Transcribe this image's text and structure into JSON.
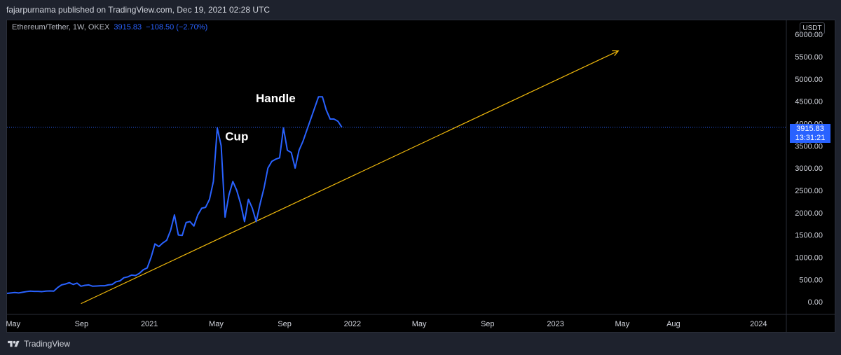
{
  "header": {
    "published_text": "fajarpurnama published on TradingView.com, Dec 19, 2021 02:28 UTC"
  },
  "legend": {
    "symbol_text": "Ethereum/Tether, 1W, OKEX",
    "last_price": "3915.83",
    "change": "−108.50 (−2.70%)"
  },
  "currency_label": "USDT",
  "price_badge": {
    "price": "3915.83",
    "countdown": "13:31:21"
  },
  "footer": {
    "logo_text": "TradingView"
  },
  "colors": {
    "background": "#000000",
    "frame": "#1e222d",
    "price_line": "#2962ff",
    "trendline": "#f0b90b",
    "annotation_text": "#ffffff"
  },
  "chart_data": {
    "type": "line",
    "title": "",
    "xlabel": "",
    "ylabel": "",
    "ylim": [
      -250,
      6300
    ],
    "xlim": [
      "2020-04-20",
      "2024-02-20"
    ],
    "y_ticks": [
      0,
      500,
      1000,
      1500,
      2000,
      2500,
      3000,
      3500,
      4000,
      4500,
      5000,
      5500,
      6000
    ],
    "y_tick_labels": [
      "0.00",
      "500.00",
      "1000.00",
      "1500.00",
      "2000.00",
      "2500.00",
      "3000.00",
      "3500.00",
      "4000.00",
      "4500.00",
      "5000.00",
      "5500.00",
      "6000.00"
    ],
    "x_ticks": [
      {
        "label": "May",
        "date": "2020-05-01"
      },
      {
        "label": "Sep",
        "date": "2020-09-01"
      },
      {
        "label": "2021",
        "date": "2021-01-01"
      },
      {
        "label": "May",
        "date": "2021-05-01"
      },
      {
        "label": "Sep",
        "date": "2021-09-01"
      },
      {
        "label": "2022",
        "date": "2022-01-01"
      },
      {
        "label": "May",
        "date": "2022-05-01"
      },
      {
        "label": "Sep",
        "date": "2022-09-01"
      },
      {
        "label": "2023",
        "date": "2023-01-01"
      },
      {
        "label": "May",
        "date": "2023-05-01"
      },
      {
        "label": "Aug",
        "date": "2023-08-01"
      },
      {
        "label": "2024",
        "date": "2024-01-01"
      }
    ],
    "grid": false,
    "last_price_line": 3915.83,
    "series": [
      {
        "name": "Ethereum/Tether, 1W, OKEX",
        "x": [
          "2020-04-20",
          "2020-04-27",
          "2020-05-04",
          "2020-05-11",
          "2020-05-18",
          "2020-05-25",
          "2020-06-01",
          "2020-06-08",
          "2020-06-15",
          "2020-06-22",
          "2020-06-29",
          "2020-07-06",
          "2020-07-13",
          "2020-07-20",
          "2020-07-27",
          "2020-08-03",
          "2020-08-10",
          "2020-08-17",
          "2020-08-24",
          "2020-08-31",
          "2020-09-07",
          "2020-09-14",
          "2020-09-21",
          "2020-09-28",
          "2020-10-05",
          "2020-10-12",
          "2020-10-19",
          "2020-10-26",
          "2020-11-02",
          "2020-11-09",
          "2020-11-16",
          "2020-11-23",
          "2020-11-30",
          "2020-12-07",
          "2020-12-14",
          "2020-12-21",
          "2020-12-28",
          "2021-01-04",
          "2021-01-11",
          "2021-01-18",
          "2021-01-25",
          "2021-02-01",
          "2021-02-08",
          "2021-02-15",
          "2021-02-22",
          "2021-03-01",
          "2021-03-08",
          "2021-03-15",
          "2021-03-22",
          "2021-03-29",
          "2021-04-05",
          "2021-04-12",
          "2021-04-19",
          "2021-04-26",
          "2021-05-03",
          "2021-05-10",
          "2021-05-17",
          "2021-05-24",
          "2021-05-31",
          "2021-06-07",
          "2021-06-14",
          "2021-06-21",
          "2021-06-28",
          "2021-07-05",
          "2021-07-12",
          "2021-07-19",
          "2021-07-26",
          "2021-08-02",
          "2021-08-09",
          "2021-08-16",
          "2021-08-23",
          "2021-08-30",
          "2021-09-06",
          "2021-09-13",
          "2021-09-20",
          "2021-09-27",
          "2021-10-04",
          "2021-10-11",
          "2021-10-18",
          "2021-10-25",
          "2021-11-01",
          "2021-11-08",
          "2021-11-15",
          "2021-11-22",
          "2021-11-29",
          "2021-12-06",
          "2021-12-13"
        ],
        "values": [
          190,
          200,
          210,
          200,
          215,
          230,
          240,
          235,
          235,
          230,
          240,
          245,
          240,
          320,
          380,
          400,
          430,
          390,
          420,
          350,
          370,
          380,
          350,
          355,
          360,
          360,
          380,
          390,
          450,
          470,
          540,
          560,
          600,
          590,
          640,
          720,
          760,
          1000,
          1300,
          1240,
          1320,
          1380,
          1600,
          1950,
          1500,
          1490,
          1780,
          1800,
          1700,
          1950,
          2100,
          2120,
          2300,
          2700,
          3900,
          3500,
          1900,
          2400,
          2700,
          2500,
          2200,
          1800,
          2300,
          2100,
          1800,
          2200,
          2550,
          3000,
          3150,
          3200,
          3230,
          3900,
          3400,
          3350,
          3000,
          3400,
          3600,
          3850,
          4100,
          4350,
          4600,
          4600,
          4300,
          4100,
          4100,
          4050,
          3915.83
        ]
      }
    ],
    "trendline": {
      "start": {
        "date": "2020-08-31",
        "value": -40
      },
      "end": {
        "date": "2023-04-24",
        "value": 5630
      }
    },
    "annotations": [
      {
        "text": "Handle",
        "date": "2021-08-16",
        "value": 4480
      },
      {
        "text": "Cup",
        "date": "2021-06-07",
        "value": 3620
      }
    ]
  }
}
